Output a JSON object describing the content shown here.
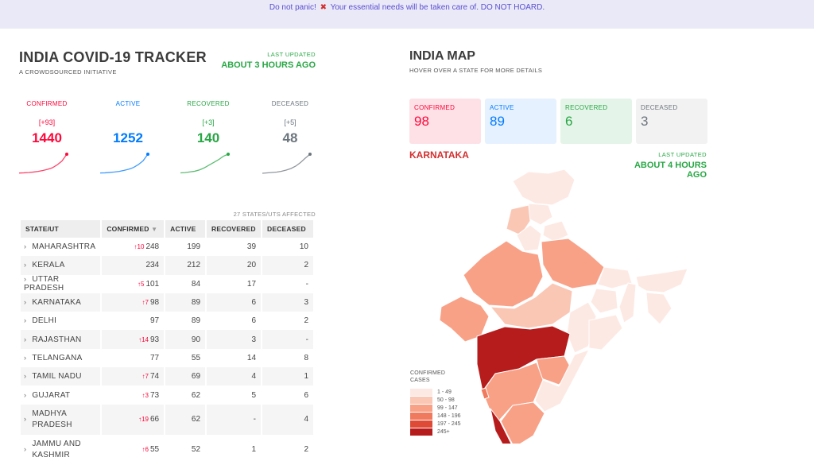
{
  "banner": {
    "text_before": "Do not panic!",
    "icon": "cross-mark-icon",
    "text_after": "Your essential needs will be taken care of. DO NOT HOARD."
  },
  "tracker": {
    "title": "INDIA COVID-19 TRACKER",
    "subtitle": "A CROWDSOURCED INITIATIVE",
    "last_updated_label": "LAST UPDATED",
    "last_updated_value": "ABOUT 3 HOURS AGO",
    "stats": [
      {
        "label": "CONFIRMED",
        "delta": "[+93]",
        "value": "1440",
        "color": "#ff073a",
        "spark": [
          20,
          35,
          60,
          95,
          140,
          210,
          300,
          420,
          640,
          930,
          1440
        ]
      },
      {
        "label": "ACTIVE",
        "delta": "",
        "value": "1252",
        "color": "#007bff",
        "spark": [
          20,
          30,
          55,
          85,
          125,
          190,
          270,
          380,
          570,
          820,
          1252
        ]
      },
      {
        "label": "RECOVERED",
        "delta": "[+3]",
        "value": "140",
        "color": "#28a745",
        "spark": [
          3,
          5,
          10,
          15,
          25,
          40,
          60,
          80,
          100,
          125,
          140
        ]
      },
      {
        "label": "DECEASED",
        "delta": "[+5]",
        "value": "48",
        "color": "#6c757d",
        "spark": [
          0,
          1,
          2,
          3,
          5,
          8,
          12,
          18,
          27,
          38,
          48
        ]
      }
    ],
    "affected": "27 STATES/UTS AFFECTED",
    "table": {
      "headers": [
        "STATE/UT",
        "CONFIRMED",
        "ACTIVE",
        "RECOVERED",
        "DECEASED"
      ],
      "rows": [
        {
          "state": "MAHARASHTRA",
          "delta": "10",
          "confirmed": "248",
          "active": "199",
          "recovered": "39",
          "deceased": "10"
        },
        {
          "state": "KERALA",
          "delta": "",
          "confirmed": "234",
          "active": "212",
          "recovered": "20",
          "deceased": "2"
        },
        {
          "state": "UTTAR PRADESH",
          "delta": "5",
          "confirmed": "101",
          "active": "84",
          "recovered": "17",
          "deceased": "-"
        },
        {
          "state": "KARNATAKA",
          "delta": "7",
          "confirmed": "98",
          "active": "89",
          "recovered": "6",
          "deceased": "3"
        },
        {
          "state": "DELHI",
          "delta": "",
          "confirmed": "97",
          "active": "89",
          "recovered": "6",
          "deceased": "2"
        },
        {
          "state": "RAJASTHAN",
          "delta": "14",
          "confirmed": "93",
          "active": "90",
          "recovered": "3",
          "deceased": "-"
        },
        {
          "state": "TELANGANA",
          "delta": "",
          "confirmed": "77",
          "active": "55",
          "recovered": "14",
          "deceased": "8"
        },
        {
          "state": "TAMIL NADU",
          "delta": "7",
          "confirmed": "74",
          "active": "69",
          "recovered": "4",
          "deceased": "1"
        },
        {
          "state": "GUJARAT",
          "delta": "3",
          "confirmed": "73",
          "active": "62",
          "recovered": "5",
          "deceased": "6"
        },
        {
          "state": "MADHYA PRADESH",
          "delta": "19",
          "confirmed": "66",
          "active": "62",
          "recovered": "-",
          "deceased": "4"
        },
        {
          "state": "JAMMU AND KASHMIR",
          "delta": "6",
          "confirmed": "55",
          "active": "52",
          "recovered": "1",
          "deceased": "2"
        }
      ]
    }
  },
  "map": {
    "title": "INDIA MAP",
    "subtitle": "HOVER OVER A STATE FOR MORE DETAILS",
    "boxes": [
      {
        "label": "CONFIRMED",
        "value": "98",
        "bg": "#fde1e6",
        "color": "#ff073a"
      },
      {
        "label": "ACTIVE",
        "value": "89",
        "bg": "#e6f1ff",
        "color": "#007bff"
      },
      {
        "label": "RECOVERED",
        "value": "6",
        "bg": "#e4f4e8",
        "color": "#28a745"
      },
      {
        "label": "DECEASED",
        "value": "3",
        "bg": "#f2f2f2",
        "color": "#6c757d"
      }
    ],
    "state_name": "KARNATAKA",
    "last_updated_label": "LAST UPDATED",
    "last_updated_value": "ABOUT 4 HOURS AGO",
    "legend_title": "CONFIRMED CASES",
    "legend": [
      {
        "label": "1 - 49",
        "color": "#fde9e3"
      },
      {
        "label": "50 - 98",
        "color": "#fbc7b5"
      },
      {
        "label": "99 - 147",
        "color": "#f8a187"
      },
      {
        "label": "148 - 196",
        "color": "#f07a5d"
      },
      {
        "label": "197 - 245",
        "color": "#de4a35"
      },
      {
        "label": "245+",
        "color": "#b71c1c"
      }
    ]
  }
}
